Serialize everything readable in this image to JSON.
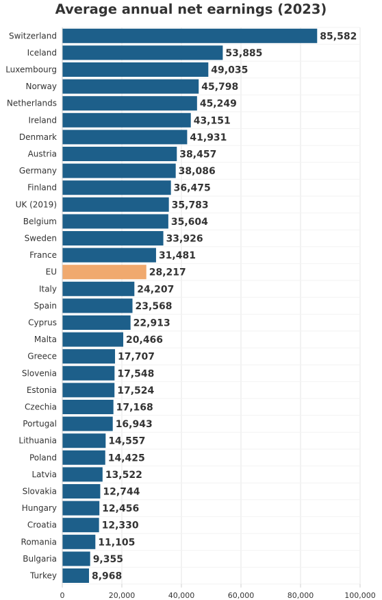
{
  "chart_data": {
    "type": "bar",
    "orientation": "horizontal",
    "title": "Average annual net earnings (2023)",
    "categories": [
      "Switzerland",
      "Iceland",
      "Luxembourg",
      "Norway",
      "Netherlands",
      "Ireland",
      "Denmark",
      "Austria",
      "Germany",
      "Finland",
      "UK (2019)",
      "Belgium",
      "Sweden",
      "France",
      "EU",
      "Italy",
      "Spain",
      "Cyprus",
      "Malta",
      "Greece",
      "Slovenia",
      "Estonia",
      "Czechia",
      "Portugal",
      "Lithuania",
      "Poland",
      "Latvia",
      "Slovakia",
      "Hungary",
      "Croatia",
      "Romania",
      "Bulgaria",
      "Turkey"
    ],
    "values": [
      85582,
      53885,
      49035,
      45798,
      45249,
      43151,
      41931,
      38457,
      38086,
      36475,
      35783,
      35604,
      33926,
      31481,
      28217,
      24207,
      23568,
      22913,
      20466,
      17707,
      17548,
      17524,
      17168,
      16943,
      14557,
      14425,
      13522,
      12744,
      12456,
      12330,
      11105,
      9355,
      8968
    ],
    "value_labels": [
      "85,582",
      "53,885",
      "49,035",
      "45,798",
      "45,249",
      "43,151",
      "41,931",
      "38,457",
      "38,086",
      "36,475",
      "35,783",
      "35,604",
      "33,926",
      "31,481",
      "28,217",
      "24,207",
      "23,568",
      "22,913",
      "20,466",
      "17,707",
      "17,548",
      "17,524",
      "17,168",
      "16,943",
      "14,557",
      "14,425",
      "13,522",
      "12,744",
      "12,456",
      "12,330",
      "11,105",
      "9,355",
      "8,968"
    ],
    "highlight_category": "EU",
    "xlim": [
      0,
      100000
    ],
    "xticks": [
      0,
      20000,
      40000,
      60000,
      80000,
      100000
    ],
    "xtick_labels": [
      "0",
      "20,000",
      "40,000",
      "60,000",
      "80,000",
      "100,000"
    ],
    "grid": true,
    "colors": {
      "bar": "#1d5f8a",
      "highlight": "#f0a96e",
      "grid": "#e6e6e6",
      "text": "#333333"
    }
  }
}
